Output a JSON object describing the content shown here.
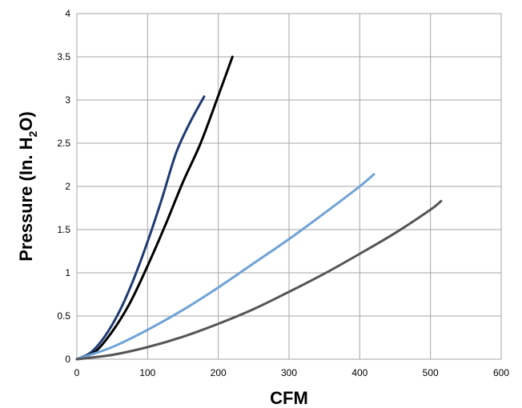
{
  "chart_data": {
    "type": "line",
    "title": "",
    "xlabel": "CFM",
    "ylabel": {
      "main": "Pressure (In. H",
      "sub": "2",
      "end": "O)"
    },
    "xlim": [
      0,
      600
    ],
    "ylim": [
      0,
      4
    ],
    "xticks": [
      {
        "v": 0,
        "label": "0"
      },
      {
        "v": 100,
        "label": "100"
      },
      {
        "v": 200,
        "label": "200"
      },
      {
        "v": 300,
        "label": "300"
      },
      {
        "v": 400,
        "label": "400"
      },
      {
        "v": 500,
        "label": "500"
      },
      {
        "v": 600,
        "label": "600"
      }
    ],
    "yticks": [
      {
        "v": 0,
        "label": "0"
      },
      {
        "v": 0.5,
        "label": "0.5"
      },
      {
        "v": 1,
        "label": "1"
      },
      {
        "v": 1.5,
        "label": "1.5"
      },
      {
        "v": 2,
        "label": "2"
      },
      {
        "v": 2.5,
        "label": "2.5"
      },
      {
        "v": 3,
        "label": "3"
      },
      {
        "v": 3.5,
        "label": "3.5"
      },
      {
        "v": 4,
        "label": "4"
      }
    ],
    "grid": true,
    "legend": "none",
    "series": [
      {
        "color": "#1f3b73",
        "points": [
          [
            0,
            0
          ],
          [
            20,
            0.08
          ],
          [
            40,
            0.27
          ],
          [
            60,
            0.55
          ],
          [
            80,
            0.92
          ],
          [
            100,
            1.36
          ],
          [
            120,
            1.85
          ],
          [
            140,
            2.38
          ],
          [
            160,
            2.74
          ],
          [
            180,
            3.04
          ]
        ]
      },
      {
        "color": "#000000",
        "points": [
          [
            0,
            0
          ],
          [
            25,
            0.08
          ],
          [
            50,
            0.32
          ],
          [
            75,
            0.65
          ],
          [
            100,
            1.08
          ],
          [
            125,
            1.55
          ],
          [
            150,
            2.05
          ],
          [
            175,
            2.5
          ],
          [
            200,
            3.05
          ],
          [
            220,
            3.5
          ]
        ]
      },
      {
        "color": "#6fa3d6",
        "points": [
          [
            0,
            0
          ],
          [
            50,
            0.14
          ],
          [
            100,
            0.34
          ],
          [
            150,
            0.57
          ],
          [
            200,
            0.83
          ],
          [
            250,
            1.11
          ],
          [
            300,
            1.39
          ],
          [
            350,
            1.69
          ],
          [
            400,
            2.0
          ],
          [
            420,
            2.14
          ]
        ]
      },
      {
        "color": "#555555",
        "points": [
          [
            0,
            0
          ],
          [
            50,
            0.05
          ],
          [
            100,
            0.14
          ],
          [
            150,
            0.26
          ],
          [
            200,
            0.41
          ],
          [
            250,
            0.58
          ],
          [
            300,
            0.78
          ],
          [
            350,
            0.99
          ],
          [
            400,
            1.22
          ],
          [
            450,
            1.46
          ],
          [
            500,
            1.73
          ],
          [
            515,
            1.83
          ]
        ]
      }
    ]
  }
}
